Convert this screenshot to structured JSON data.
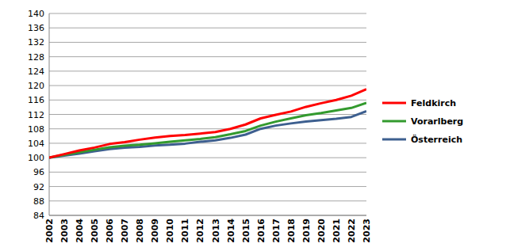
{
  "chart_data": {
    "type": "line",
    "categories": [
      "2002",
      "2003",
      "2004",
      "2005",
      "2006",
      "2007",
      "2008",
      "2009",
      "2010",
      "2011",
      "2012",
      "2013",
      "2014",
      "2015",
      "2016",
      "2017",
      "2018",
      "2019",
      "2020",
      "2021",
      "2022",
      "2023"
    ],
    "series": [
      {
        "name": "Feldkirch",
        "color": "#ff0000",
        "values": [
          100,
          101,
          102,
          102.8,
          103.8,
          104.3,
          105,
          105.6,
          106,
          106.3,
          106.7,
          107.1,
          108,
          109.2,
          110.9,
          111.9,
          112.8,
          114.1,
          115.1,
          116,
          117.2,
          119
        ]
      },
      {
        "name": "Vorarlberg",
        "color": "#339a2e",
        "values": [
          100,
          100.8,
          101.5,
          102.2,
          102.9,
          103.3,
          103.6,
          104,
          104.4,
          104.8,
          105.2,
          105.7,
          106.5,
          107.4,
          108.9,
          110,
          110.9,
          111.8,
          112.4,
          113.1,
          113.8,
          115.2
        ]
      },
      {
        "name": "Österreich",
        "color": "#3d5f8f",
        "values": [
          100,
          100.6,
          101.1,
          101.8,
          102.4,
          102.8,
          103,
          103.4,
          103.6,
          103.9,
          104.4,
          104.8,
          105.5,
          106.4,
          108,
          108.9,
          109.5,
          110,
          110.4,
          110.8,
          111.3,
          112.9
        ]
      }
    ],
    "ylim": [
      84,
      140
    ],
    "yticks": [
      84,
      88,
      92,
      96,
      100,
      104,
      108,
      112,
      116,
      120,
      124,
      128,
      132,
      136,
      140
    ],
    "grid": true,
    "legend": "right"
  }
}
